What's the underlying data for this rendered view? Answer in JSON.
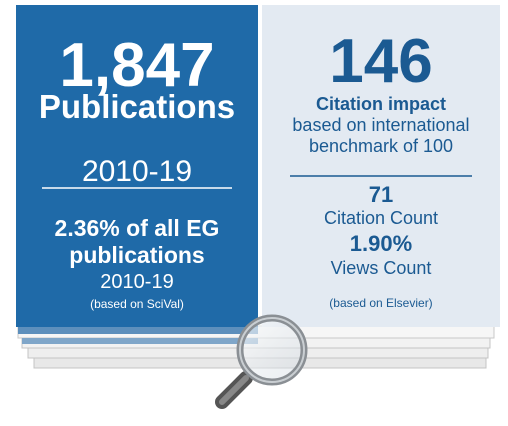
{
  "left": {
    "count": "1,847",
    "label": "Publications",
    "period": "2010-19",
    "share_line1": "2.36% of all EG",
    "share_line2": "publications",
    "share_period": "2010-19",
    "source": "(based on SciVal)"
  },
  "right": {
    "impact": "146",
    "impact_label": "Citation impact",
    "impact_desc1": "based on international",
    "impact_desc2": "benchmark of 100",
    "citations": "71",
    "citations_label": "Citation Count",
    "views": "1.90%",
    "views_label": "Views Count",
    "source": "(based on Elsevier)"
  }
}
